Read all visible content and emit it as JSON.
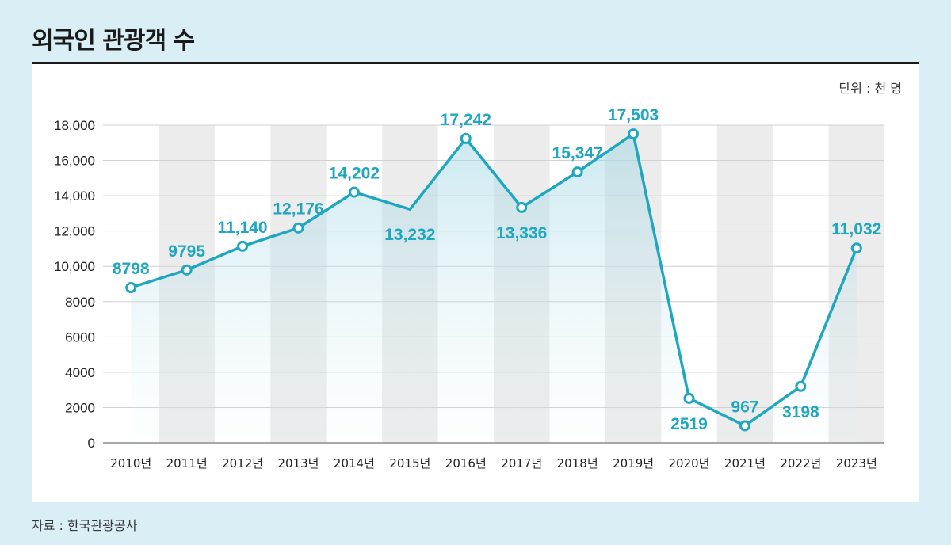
{
  "header": {
    "title": "외국인 관광객 수",
    "unit": "단위 : 천 명"
  },
  "footer": {
    "source": "자료 : 한국관광공사"
  },
  "colors": {
    "line": "#1ea7bf",
    "stripe": "#ececec",
    "grid": "#d2d2d2",
    "background": "#daeef6"
  },
  "chart_data": {
    "type": "line",
    "title": "외국인 관광객 수",
    "xlabel": "",
    "ylabel": "",
    "categories": [
      "2010년",
      "2011년",
      "2012년",
      "2013년",
      "2014년",
      "2015년",
      "2016년",
      "2017년",
      "2018년",
      "2019년",
      "2020년",
      "2021년",
      "2022년",
      "2023년"
    ],
    "series": [
      {
        "values": [
          8798,
          9795,
          11140,
          12176,
          14202,
          13232,
          17242,
          13336,
          15347,
          17503,
          2519,
          967,
          3198,
          11032
        ]
      }
    ],
    "data_labels": [
      "8798",
      "9795",
      "11,140",
      "12,176",
      "14,202",
      "13,232",
      "17,242",
      "13,336",
      "15,347",
      "17,503",
      "2519",
      "967",
      "3198",
      "11,032"
    ],
    "markers": [
      true,
      true,
      true,
      true,
      true,
      false,
      true,
      true,
      true,
      true,
      true,
      true,
      true,
      true
    ],
    "label_position": [
      "above",
      "above",
      "above",
      "above",
      "above",
      "below",
      "above",
      "below",
      "above",
      "above",
      "below",
      "above",
      "below",
      "above"
    ],
    "ylim": [
      0,
      18000
    ],
    "yticks": [
      0,
      2000,
      4000,
      6000,
      8000,
      10000,
      12000,
      14000,
      16000,
      18000
    ],
    "ytick_labels": [
      "0",
      "2000",
      "4000",
      "6000",
      "8000",
      "10,000",
      "12,000",
      "14,000",
      "16,000",
      "18,000"
    ],
    "grid": true,
    "alternating_column_shading": true,
    "area_gradient_fill": true
  }
}
